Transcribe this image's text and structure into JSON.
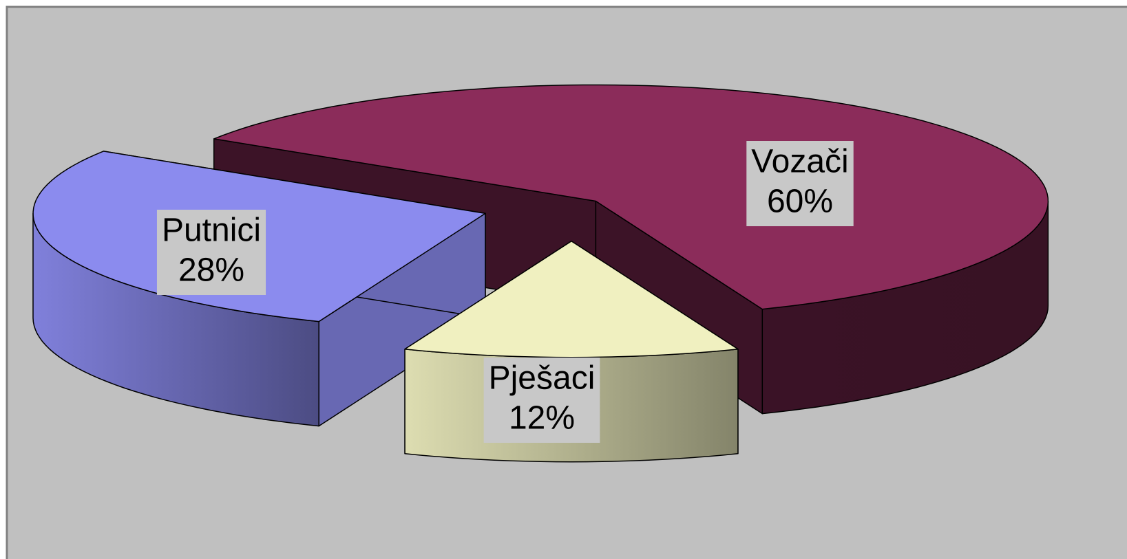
{
  "chart_data": {
    "type": "pie",
    "categories": [
      "Vozači",
      "Putnici",
      "Pješaci"
    ],
    "values": [
      60,
      28,
      12
    ],
    "value_labels": [
      "60%",
      "28%",
      "12%"
    ],
    "colors": [
      "#8b2c5a",
      "#8b8bee",
      "#f0f0c0"
    ]
  }
}
